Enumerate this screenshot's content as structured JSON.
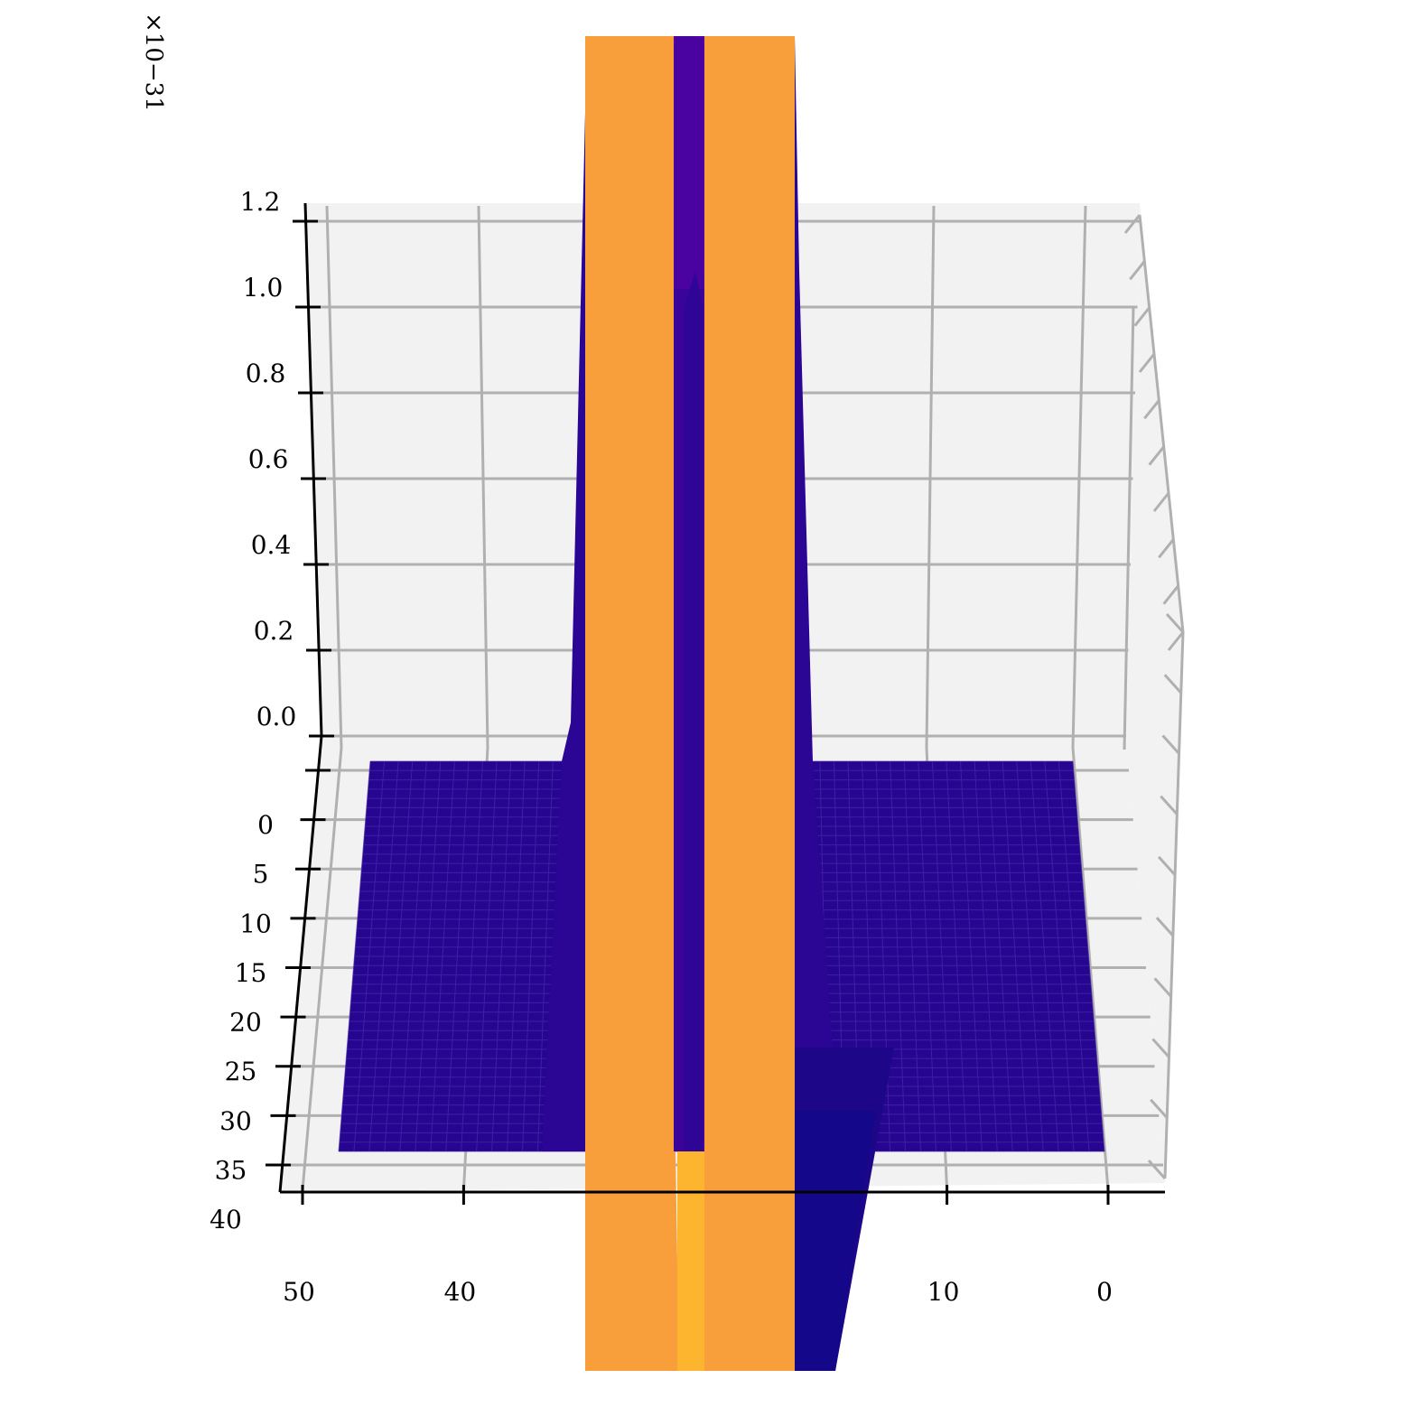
{
  "chart_data": {
    "type": "surface3d",
    "title": "",
    "xlabel": "",
    "ylabel": "",
    "zlabel": "",
    "z_multiplier_label": "×10−31",
    "x_axis": {
      "range": [
        0,
        50
      ],
      "ticks": [
        50,
        40,
        10,
        0
      ],
      "tick_labels": [
        "50",
        "40",
        "10",
        "0"
      ]
    },
    "y_axis": {
      "range": [
        0,
        40
      ],
      "ticks": [
        0,
        5,
        10,
        15,
        20,
        25,
        30,
        35,
        40
      ],
      "tick_labels": [
        "0",
        "5",
        "10",
        "15",
        "20",
        "25",
        "30",
        "35",
        "40"
      ]
    },
    "z_axis": {
      "range": [
        0,
        1.2
      ],
      "ticks": [
        0.0,
        0.2,
        0.4,
        0.6,
        0.8,
        1.0,
        1.2
      ],
      "tick_labels": [
        "0.0",
        "0.2",
        "0.4",
        "0.6",
        "0.8",
        "1.0",
        "1.2"
      ]
    },
    "grid": true,
    "surface": {
      "colormap": "plasma",
      "base_value": 0.0,
      "peak_x": 26.5,
      "peak_value_exceeds_z_max": true,
      "inner_peak_value": 1.05
    },
    "colors": {
      "base": "#260591",
      "low": "#2e0595",
      "mid": "#4a02a0",
      "high": "#f89f3b",
      "top": "#fdb42f",
      "pane": "#f2f2f2",
      "grid": "#b0b0b0"
    }
  }
}
